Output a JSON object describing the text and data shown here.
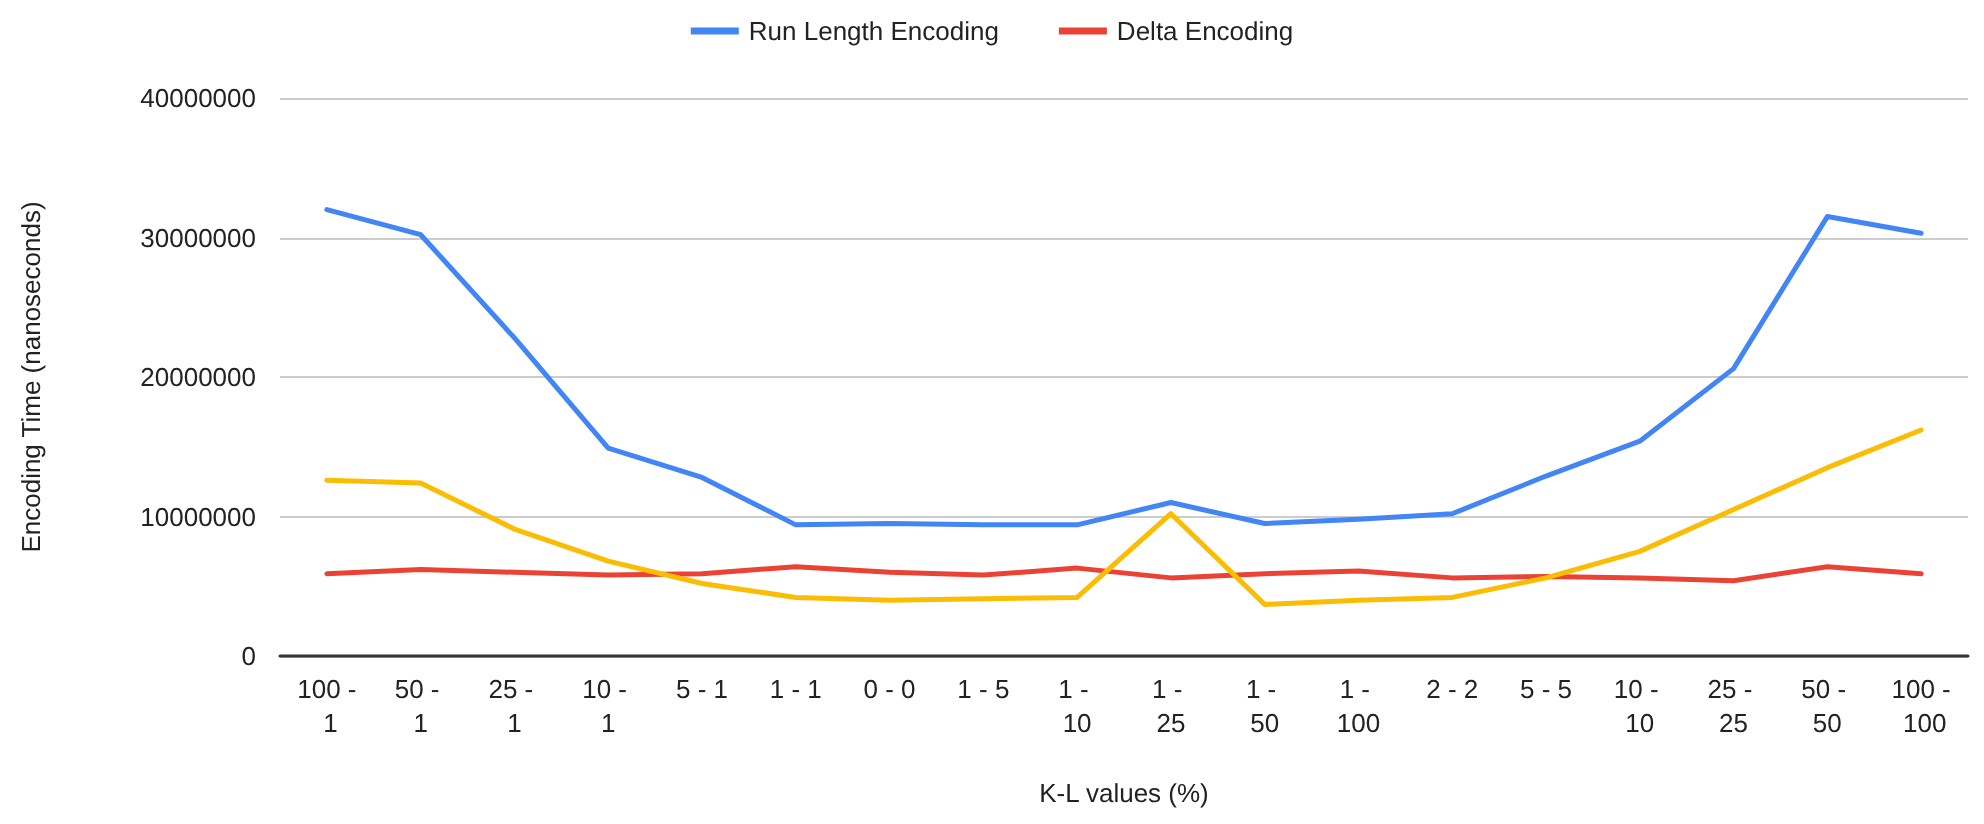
{
  "chart_data": {
    "type": "line",
    "xlabel": "K-L values (%)",
    "ylabel": "Encoding Time (nanoseconds)",
    "categories": [
      "100 - 1",
      "50 - 1",
      "25 - 1",
      "10 - 1",
      "5 - 1",
      "1 - 1",
      "0 - 0",
      "1 - 5",
      "1 - 10",
      "1 - 25",
      "1 - 50",
      "1 - 100",
      "2 - 2",
      "5 - 5",
      "10 - 10",
      "25 - 25",
      "50 - 50",
      "100 - 100"
    ],
    "series": [
      {
        "name": "Run Length Encoding",
        "color": "#4285f4",
        "values": [
          32000000,
          30200000,
          22800000,
          14900000,
          12800000,
          9400000,
          9500000,
          9400000,
          9400000,
          11000000,
          9500000,
          9800000,
          10200000,
          12900000,
          15400000,
          20600000,
          31500000,
          30300000
        ]
      },
      {
        "name": "Delta Encoding",
        "color": "#ea4335",
        "values": [
          5900000,
          6200000,
          6000000,
          5800000,
          5900000,
          6400000,
          6000000,
          5800000,
          6300000,
          5600000,
          5900000,
          6100000,
          5600000,
          5700000,
          5600000,
          5400000,
          6400000,
          5900000
        ]
      },
      {
        "color": "#fbbc04",
        "values": [
          12600000,
          12400000,
          9100000,
          6800000,
          5200000,
          4200000,
          4000000,
          4100000,
          4200000,
          10200000,
          3700000,
          4000000,
          4200000,
          5600000,
          7500000,
          10500000,
          13500000,
          16200000
        ]
      }
    ],
    "ylim": [
      0,
      40000000
    ],
    "yticks": [
      0,
      10000000,
      20000000,
      30000000,
      40000000
    ],
    "grid": "y",
    "legend": "top",
    "marker": "none",
    "line_style": "solid"
  }
}
